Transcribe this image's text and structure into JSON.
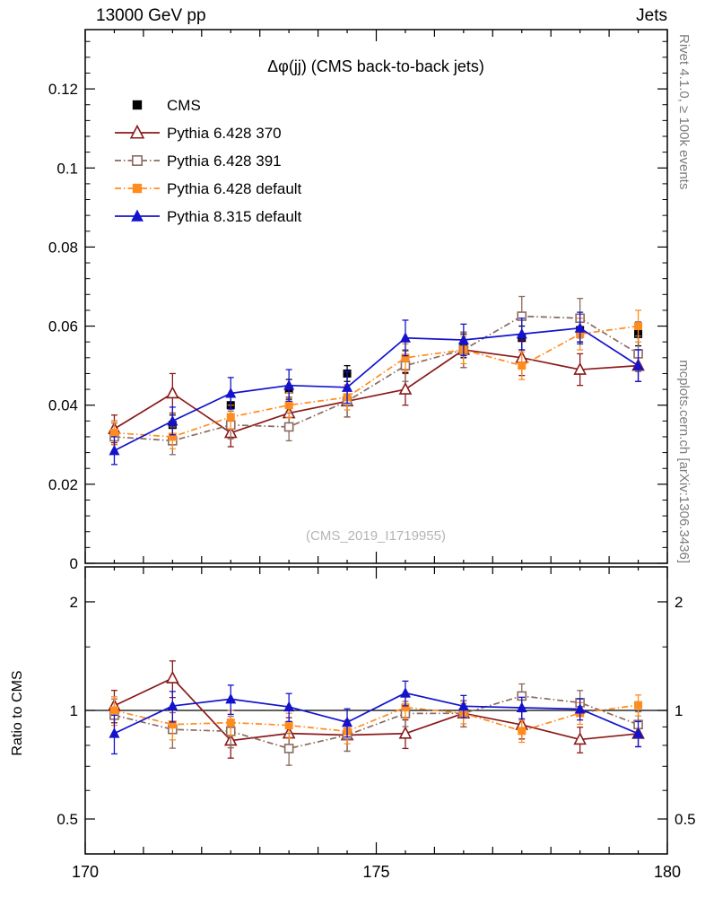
{
  "header": {
    "left": "13000 GeV pp",
    "right": "Jets"
  },
  "side_labels": {
    "rivet": "Rivet 4.1.0, ≥ 100k events",
    "mcplots": "mcplots.cern.ch [arXiv:1306.3436]"
  },
  "chart_data": {
    "type": "line",
    "title": "Δφ(jj) (CMS back-to-back jets)",
    "watermark": "(CMS_2019_I1719955)",
    "xlabel": "",
    "xlim": [
      170,
      180
    ],
    "x_ticks_labeled": [
      170,
      175,
      180
    ],
    "x": [
      170.5,
      171.5,
      172.5,
      173.5,
      174.5,
      175.5,
      176.5,
      177.5,
      178.5,
      179.5
    ],
    "main_axis": {
      "ylim": [
        0,
        0.135
      ],
      "tick_values": [
        0,
        0.02,
        0.04,
        0.06,
        0.08,
        0.1,
        0.12
      ],
      "tick_labels": [
        "0",
        "0.02",
        "0.04",
        "0.06",
        "0.08",
        "0.1",
        "0.12"
      ],
      "minor_step": 0.004
    },
    "ratio_axis": {
      "label": "Ratio to CMS",
      "scale": "log",
      "ylim": [
        0.4,
        2.5
      ],
      "tick_values": [
        0.5,
        1,
        2
      ],
      "tick_labels": [
        "0.5",
        "1",
        "2"
      ],
      "minor_ticks": [
        0.6,
        0.7,
        0.8,
        0.9,
        1.5
      ]
    },
    "series": [
      {
        "name": "CMS",
        "role": "data",
        "color": "#000000",
        "marker": "square-filled",
        "line": "none",
        "values": [
          0.033,
          0.035,
          0.04,
          0.044,
          0.048,
          0.051,
          0.055,
          0.057,
          0.059,
          0.058
        ],
        "errors": [
          0.003,
          0.0025,
          0.0025,
          0.0025,
          0.002,
          0.0028,
          0.003,
          0.003,
          0.003,
          0.003
        ]
      },
      {
        "name": "Pythia 6.428 370",
        "role": "mc",
        "color": "#8b1a1a",
        "marker": "triangle-open",
        "line": "solid",
        "values": [
          0.034,
          0.043,
          0.033,
          0.038,
          0.041,
          0.044,
          0.054,
          0.052,
          0.049,
          0.05
        ],
        "errors": [
          0.0035,
          0.005,
          0.0035,
          0.004,
          0.004,
          0.004,
          0.0045,
          0.0045,
          0.004,
          0.004
        ]
      },
      {
        "name": "Pythia 6.428 391",
        "role": "mc",
        "color": "#8a6a5f",
        "marker": "square-open",
        "line": "dashdot",
        "values": [
          0.032,
          0.031,
          0.035,
          0.0345,
          0.041,
          0.05,
          0.054,
          0.0625,
          0.062,
          0.053
        ],
        "errors": [
          0.0035,
          0.0035,
          0.0035,
          0.0035,
          0.004,
          0.004,
          0.0045,
          0.005,
          0.005,
          0.0045
        ]
      },
      {
        "name": "Pythia 6.428 default",
        "role": "mc",
        "color": "#ff8c1e",
        "marker": "square-filled",
        "line": "dashdot",
        "values": [
          0.033,
          0.032,
          0.037,
          0.04,
          0.042,
          0.052,
          0.054,
          0.05,
          0.058,
          0.06
        ],
        "errors": [
          0.003,
          0.003,
          0.003,
          0.0032,
          0.0032,
          0.0035,
          0.0035,
          0.0035,
          0.004,
          0.004
        ]
      },
      {
        "name": "Pythia 8.315 default",
        "role": "mc",
        "color": "#1313cd",
        "marker": "triangle-filled",
        "line": "solid",
        "values": [
          0.0285,
          0.036,
          0.043,
          0.045,
          0.0445,
          0.057,
          0.0565,
          0.058,
          0.0595,
          0.05
        ],
        "errors": [
          0.0035,
          0.0035,
          0.004,
          0.004,
          0.004,
          0.0045,
          0.004,
          0.004,
          0.004,
          0.004
        ]
      }
    ]
  }
}
